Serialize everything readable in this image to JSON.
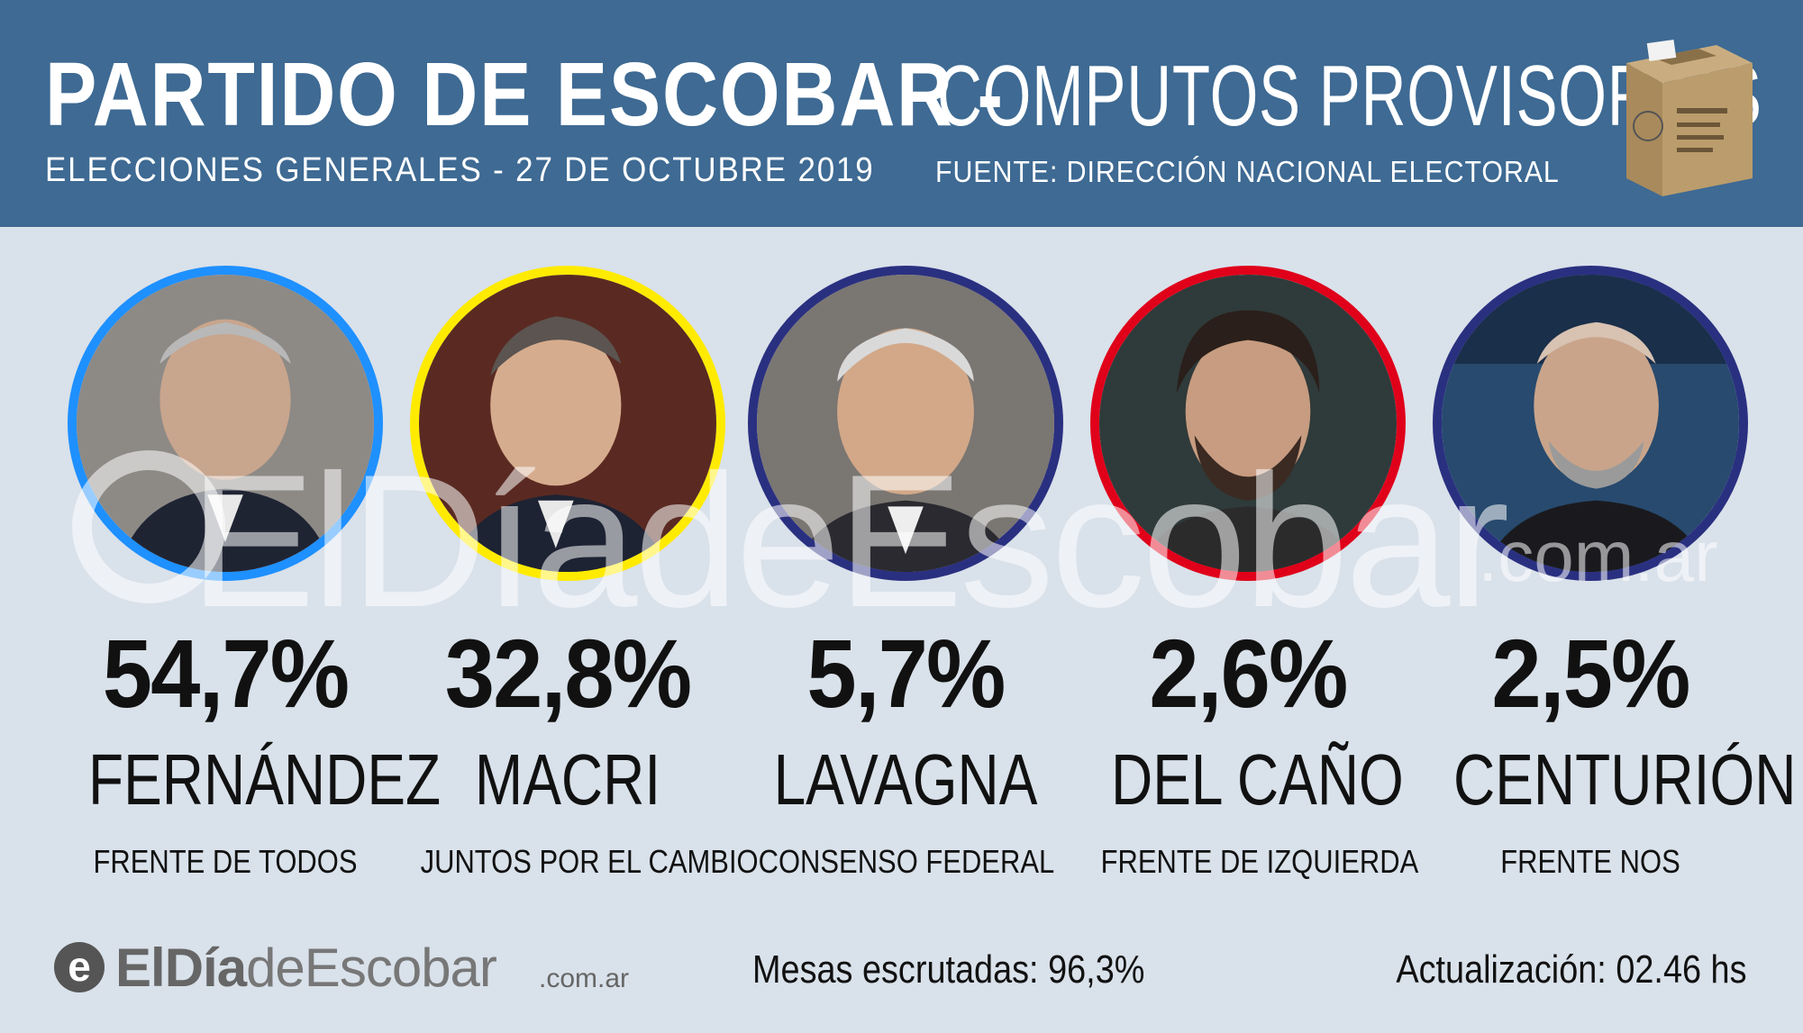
{
  "header": {
    "title_left": "PARTIDO DE ESCOBAR -",
    "title_right": "COMPUTOS PROVISORIOS",
    "subtitle_left": "ELECCIONES GENERALES - 27 DE OCTUBRE 2019",
    "subtitle_right": "FUENTE: DIRECCIÓN NACIONAL ELECTORAL",
    "background_color": "#3e6a93"
  },
  "candidates": [
    {
      "percent": "54,7%",
      "name": "FERNÁNDEZ",
      "party": "FRENTE DE TODOS",
      "ring_color": "#1e90ff"
    },
    {
      "percent": "32,8%",
      "name": "MACRI",
      "party": "JUNTOS POR EL CAMBIO",
      "ring_color": "#ffeb00"
    },
    {
      "percent": "5,7%",
      "name": "LAVAGNA",
      "party": "CONSENSO FEDERAL",
      "ring_color": "#2a3080"
    },
    {
      "percent": "2,6%",
      "name": "DEL CAÑO",
      "party": "FRENTE DE IZQUIERDA",
      "ring_color": "#e0001a"
    },
    {
      "percent": "2,5%",
      "name": "CENTURIÓN",
      "party": "FRENTE NOS",
      "ring_color": "#2a3080"
    }
  ],
  "watermark": {
    "text": "ElDíadeEscobar",
    "suffix": ".com.ar"
  },
  "footer": {
    "logo_badge": "e",
    "logo_bold": "ElDía",
    "logo_light": "deEscobar",
    "logo_suffix": ".com.ar",
    "mesas": "Mesas escrutadas: 96,3%",
    "actualizacion": "Actualización: 02.46 hs"
  },
  "icons": {
    "ballot_box": "ballot-box-icon",
    "portrait": "person-portrait-icon"
  }
}
